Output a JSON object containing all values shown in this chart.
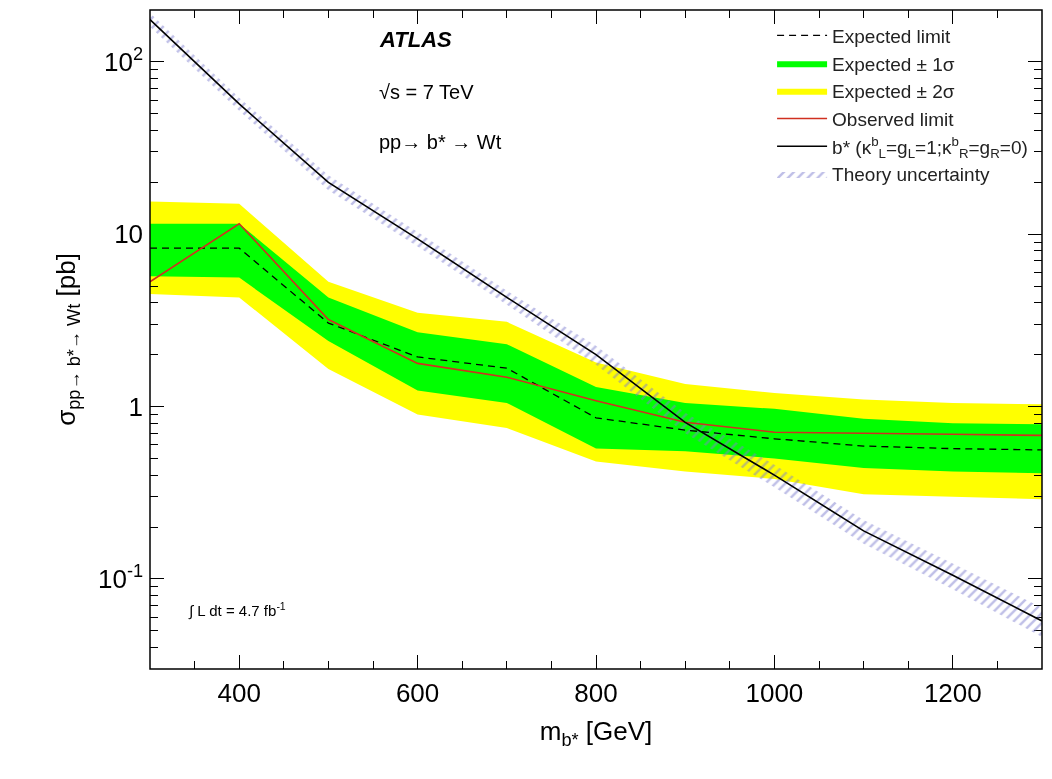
{
  "chart_data": {
    "type": "line",
    "xlabel": "m$_{b*}$ [GeV]",
    "ylabel": "σ$_{pp→ b*→ Wt}$ [pb]",
    "x": [
      300,
      400,
      500,
      600,
      700,
      800,
      900,
      1000,
      1100,
      1200,
      1300
    ],
    "series": [
      {
        "name": "Expected limit",
        "color": "#000000",
        "line_style": "dashed",
        "values": [
          8.3,
          8.3,
          3.05,
          1.94,
          1.67,
          0.86,
          0.73,
          0.65,
          0.59,
          0.57,
          0.56
        ]
      },
      {
        "name": "Expected ± 1σ",
        "color": "#00ff00",
        "values": [
          null,
          null,
          null,
          null,
          null,
          null,
          null,
          null,
          null,
          null,
          null
        ],
        "lower": [
          5.7,
          5.6,
          2.4,
          1.24,
          1.05,
          0.57,
          0.55,
          0.5,
          0.44,
          0.42,
          0.41
        ],
        "upper": [
          11.5,
          11.5,
          4.3,
          2.7,
          2.3,
          1.3,
          1.05,
          0.97,
          0.85,
          0.8,
          0.79
        ]
      },
      {
        "name": "Expected ± 2σ",
        "color": "#ffff00",
        "values": [
          null,
          null,
          null,
          null,
          null,
          null,
          null,
          null,
          null,
          null,
          null
        ],
        "lower": [
          4.5,
          4.3,
          1.65,
          0.9,
          0.75,
          0.48,
          0.42,
          0.38,
          0.31,
          0.3,
          0.29
        ],
        "upper": [
          15.5,
          15,
          5.3,
          3.5,
          3.1,
          1.8,
          1.35,
          1.2,
          1.1,
          1.05,
          1.03
        ]
      },
      {
        "name": "Observed limit",
        "color": "#d03020",
        "line_style": "solid",
        "values": [
          5.3,
          11.5,
          3.2,
          1.78,
          1.48,
          1.08,
          0.81,
          0.71,
          0.7,
          0.69,
          0.68
        ]
      },
      {
        "name": "b* (κ$^{b}$$_{L}$=g$_{L}$=1;κ$^{b}$$_{R}$=g$_{R}$=0)",
        "color": "#000000",
        "line_style": "solid",
        "values": [
          176,
          57,
          20,
          9.4,
          4.3,
          2.0,
          0.81,
          0.4,
          0.19,
          0.105,
          0.057
        ]
      },
      {
        "name": "Theory uncertainty",
        "color": "#8080d0",
        "values": [
          null,
          null,
          null,
          null,
          null,
          null,
          null,
          null,
          null,
          null,
          null
        ],
        "lower": [
          160,
          52,
          18,
          8.5,
          3.9,
          1.75,
          0.7,
          0.34,
          0.16,
          0.087,
          0.046
        ],
        "upper": [
          192,
          62,
          22,
          10.3,
          4.7,
          2.25,
          0.92,
          0.46,
          0.22,
          0.123,
          0.068
        ]
      }
    ],
    "xlim": [
      300,
      1300
    ],
    "xticks": [
      400,
      600,
      800,
      1000,
      1200
    ],
    "ylim": [
      0.03,
      200
    ],
    "yticks": [
      {
        "value": 0.1,
        "label": "10$^{-1}$"
      },
      1,
      10,
      {
        "value": 100,
        "label": "10$^{2}$"
      }
    ],
    "log": "y",
    "legend": "top right",
    "marker": "none",
    "annotations": [
      "ATLAS",
      "√s = 7 TeV",
      "pp→ b* → Wt",
      "∫ L dt = 4.7 fb$^{-1}$"
    ]
  }
}
